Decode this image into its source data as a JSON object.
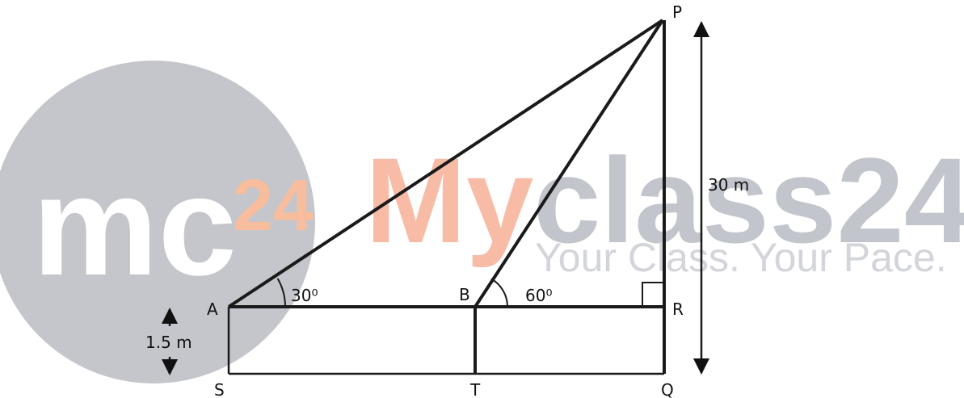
{
  "watermark": {
    "logo": "mc",
    "logo_number": "24",
    "brand_first": "My",
    "brand_rest": "class24",
    "tagline": "Your Class. Your Pace."
  },
  "points": {
    "P": "P",
    "A": "A",
    "B": "B",
    "R": "R",
    "S": "S",
    "T": "T",
    "Q": "Q"
  },
  "angles": {
    "A": "30⁰",
    "B": "60⁰"
  },
  "lengths": {
    "PQ": "30 m",
    "AS": "1.5 m"
  }
}
